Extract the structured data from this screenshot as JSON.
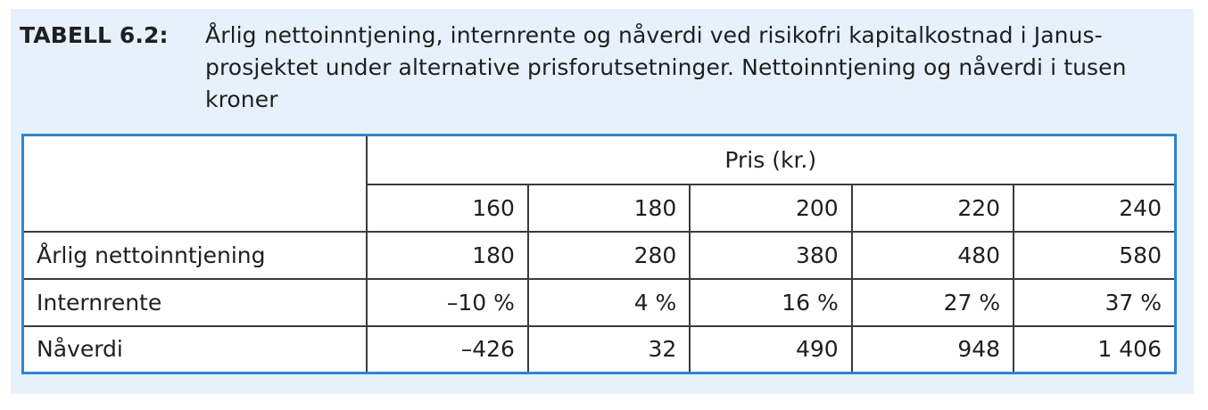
{
  "caption": {
    "label": "TABELL 6.2:",
    "text": "Årlig nettoinntjening, internrente og nåverdi ved risikofri kapitalkostnad i Janus-prosjektet under alternative prisforutsetninger. Nettoinntjening og nåverdi i tusen kroner"
  },
  "table": {
    "group_header": "Pris (kr.)",
    "prices": [
      "160",
      "180",
      "200",
      "220",
      "240"
    ],
    "rows": [
      {
        "label": "Årlig nettoinntjening",
        "values": [
          "180",
          "280",
          "380",
          "480",
          "580"
        ]
      },
      {
        "label": "Internrente",
        "values": [
          "–10 %",
          "4 %",
          "16 %",
          "27 %",
          "37 %"
        ]
      },
      {
        "label": "Nåverdi",
        "values": [
          "–426",
          "32",
          "490",
          "948",
          "1 406"
        ]
      }
    ]
  },
  "colors": {
    "panel_background": "#e6f1fb",
    "table_border": "#2f86cf"
  }
}
